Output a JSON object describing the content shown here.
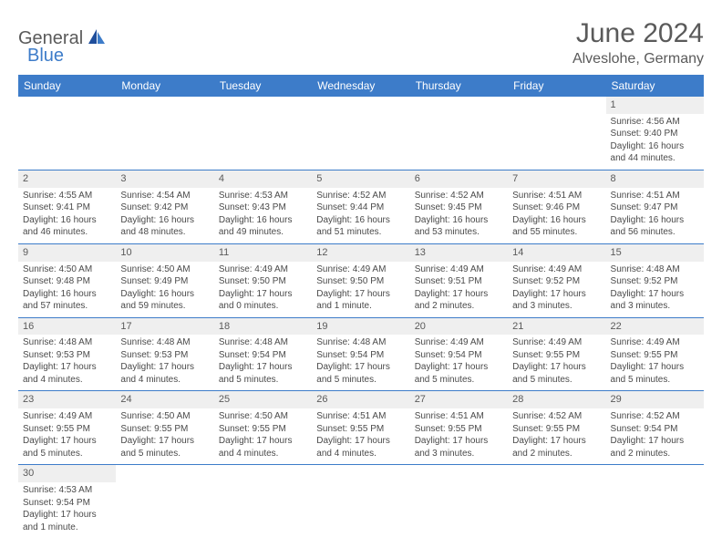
{
  "logo": {
    "part1": "General",
    "part2": "Blue"
  },
  "title": "June 2024",
  "location": "Alveslohe, Germany",
  "colors": {
    "header_bg": "#3d7cc9",
    "header_text": "#ffffff",
    "daynum_bg": "#efefef",
    "border": "#3d7cc9",
    "text": "#4a4a4a",
    "title_text": "#5a5a5a"
  },
  "weekdays": [
    "Sunday",
    "Monday",
    "Tuesday",
    "Wednesday",
    "Thursday",
    "Friday",
    "Saturday"
  ],
  "weeks": [
    {
      "nums": [
        "",
        "",
        "",
        "",
        "",
        "",
        "1"
      ],
      "cells": [
        null,
        null,
        null,
        null,
        null,
        null,
        {
          "sunrise": "Sunrise: 4:56 AM",
          "sunset": "Sunset: 9:40 PM",
          "daylight": "Daylight: 16 hours and 44 minutes."
        }
      ]
    },
    {
      "nums": [
        "2",
        "3",
        "4",
        "5",
        "6",
        "7",
        "8"
      ],
      "cells": [
        {
          "sunrise": "Sunrise: 4:55 AM",
          "sunset": "Sunset: 9:41 PM",
          "daylight": "Daylight: 16 hours and 46 minutes."
        },
        {
          "sunrise": "Sunrise: 4:54 AM",
          "sunset": "Sunset: 9:42 PM",
          "daylight": "Daylight: 16 hours and 48 minutes."
        },
        {
          "sunrise": "Sunrise: 4:53 AM",
          "sunset": "Sunset: 9:43 PM",
          "daylight": "Daylight: 16 hours and 49 minutes."
        },
        {
          "sunrise": "Sunrise: 4:52 AM",
          "sunset": "Sunset: 9:44 PM",
          "daylight": "Daylight: 16 hours and 51 minutes."
        },
        {
          "sunrise": "Sunrise: 4:52 AM",
          "sunset": "Sunset: 9:45 PM",
          "daylight": "Daylight: 16 hours and 53 minutes."
        },
        {
          "sunrise": "Sunrise: 4:51 AM",
          "sunset": "Sunset: 9:46 PM",
          "daylight": "Daylight: 16 hours and 55 minutes."
        },
        {
          "sunrise": "Sunrise: 4:51 AM",
          "sunset": "Sunset: 9:47 PM",
          "daylight": "Daylight: 16 hours and 56 minutes."
        }
      ]
    },
    {
      "nums": [
        "9",
        "10",
        "11",
        "12",
        "13",
        "14",
        "15"
      ],
      "cells": [
        {
          "sunrise": "Sunrise: 4:50 AM",
          "sunset": "Sunset: 9:48 PM",
          "daylight": "Daylight: 16 hours and 57 minutes."
        },
        {
          "sunrise": "Sunrise: 4:50 AM",
          "sunset": "Sunset: 9:49 PM",
          "daylight": "Daylight: 16 hours and 59 minutes."
        },
        {
          "sunrise": "Sunrise: 4:49 AM",
          "sunset": "Sunset: 9:50 PM",
          "daylight": "Daylight: 17 hours and 0 minutes."
        },
        {
          "sunrise": "Sunrise: 4:49 AM",
          "sunset": "Sunset: 9:50 PM",
          "daylight": "Daylight: 17 hours and 1 minute."
        },
        {
          "sunrise": "Sunrise: 4:49 AM",
          "sunset": "Sunset: 9:51 PM",
          "daylight": "Daylight: 17 hours and 2 minutes."
        },
        {
          "sunrise": "Sunrise: 4:49 AM",
          "sunset": "Sunset: 9:52 PM",
          "daylight": "Daylight: 17 hours and 3 minutes."
        },
        {
          "sunrise": "Sunrise: 4:48 AM",
          "sunset": "Sunset: 9:52 PM",
          "daylight": "Daylight: 17 hours and 3 minutes."
        }
      ]
    },
    {
      "nums": [
        "16",
        "17",
        "18",
        "19",
        "20",
        "21",
        "22"
      ],
      "cells": [
        {
          "sunrise": "Sunrise: 4:48 AM",
          "sunset": "Sunset: 9:53 PM",
          "daylight": "Daylight: 17 hours and 4 minutes."
        },
        {
          "sunrise": "Sunrise: 4:48 AM",
          "sunset": "Sunset: 9:53 PM",
          "daylight": "Daylight: 17 hours and 4 minutes."
        },
        {
          "sunrise": "Sunrise: 4:48 AM",
          "sunset": "Sunset: 9:54 PM",
          "daylight": "Daylight: 17 hours and 5 minutes."
        },
        {
          "sunrise": "Sunrise: 4:48 AM",
          "sunset": "Sunset: 9:54 PM",
          "daylight": "Daylight: 17 hours and 5 minutes."
        },
        {
          "sunrise": "Sunrise: 4:49 AM",
          "sunset": "Sunset: 9:54 PM",
          "daylight": "Daylight: 17 hours and 5 minutes."
        },
        {
          "sunrise": "Sunrise: 4:49 AM",
          "sunset": "Sunset: 9:55 PM",
          "daylight": "Daylight: 17 hours and 5 minutes."
        },
        {
          "sunrise": "Sunrise: 4:49 AM",
          "sunset": "Sunset: 9:55 PM",
          "daylight": "Daylight: 17 hours and 5 minutes."
        }
      ]
    },
    {
      "nums": [
        "23",
        "24",
        "25",
        "26",
        "27",
        "28",
        "29"
      ],
      "cells": [
        {
          "sunrise": "Sunrise: 4:49 AM",
          "sunset": "Sunset: 9:55 PM",
          "daylight": "Daylight: 17 hours and 5 minutes."
        },
        {
          "sunrise": "Sunrise: 4:50 AM",
          "sunset": "Sunset: 9:55 PM",
          "daylight": "Daylight: 17 hours and 5 minutes."
        },
        {
          "sunrise": "Sunrise: 4:50 AM",
          "sunset": "Sunset: 9:55 PM",
          "daylight": "Daylight: 17 hours and 4 minutes."
        },
        {
          "sunrise": "Sunrise: 4:51 AM",
          "sunset": "Sunset: 9:55 PM",
          "daylight": "Daylight: 17 hours and 4 minutes."
        },
        {
          "sunrise": "Sunrise: 4:51 AM",
          "sunset": "Sunset: 9:55 PM",
          "daylight": "Daylight: 17 hours and 3 minutes."
        },
        {
          "sunrise": "Sunrise: 4:52 AM",
          "sunset": "Sunset: 9:55 PM",
          "daylight": "Daylight: 17 hours and 2 minutes."
        },
        {
          "sunrise": "Sunrise: 4:52 AM",
          "sunset": "Sunset: 9:54 PM",
          "daylight": "Daylight: 17 hours and 2 minutes."
        }
      ]
    },
    {
      "nums": [
        "30",
        "",
        "",
        "",
        "",
        "",
        ""
      ],
      "cells": [
        {
          "sunrise": "Sunrise: 4:53 AM",
          "sunset": "Sunset: 9:54 PM",
          "daylight": "Daylight: 17 hours and 1 minute."
        },
        null,
        null,
        null,
        null,
        null,
        null
      ]
    }
  ]
}
